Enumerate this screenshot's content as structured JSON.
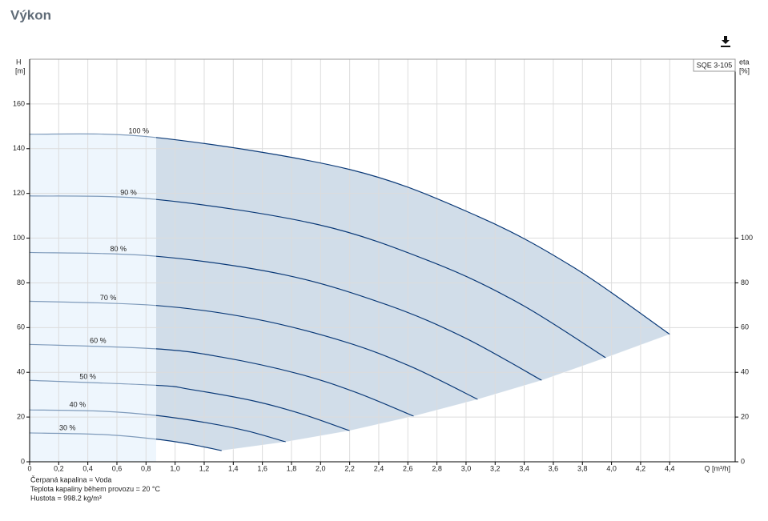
{
  "chart_data": {
    "type": "line",
    "title": "Výkon",
    "curve_label": "SQE 3-105",
    "ylabel": "H",
    "yunit": "[m]",
    "y2label": "eta",
    "y2unit": "[%]",
    "xlabel": "Q [m³/h]",
    "xlim": [
      0,
      4.85
    ],
    "xticks": [
      0,
      {
        "value": 0.2,
        "label": "0,2"
      },
      {
        "value": 0.4,
        "label": "0,4"
      },
      {
        "value": 0.6,
        "label": "0,6"
      },
      {
        "value": 0.8,
        "label": "0,8"
      },
      {
        "value": 1.0,
        "label": "1,0"
      },
      {
        "value": 1.2,
        "label": "1,2"
      },
      {
        "value": 1.4,
        "label": "1,4"
      },
      {
        "value": 1.6,
        "label": "1,6"
      },
      {
        "value": 1.8,
        "label": "1,8"
      },
      {
        "value": 2.0,
        "label": "2,0"
      },
      {
        "value": 2.2,
        "label": "2,2"
      },
      {
        "value": 2.4,
        "label": "2,4"
      },
      {
        "value": 2.6,
        "label": "2,6"
      },
      {
        "value": 2.8,
        "label": "2,8"
      },
      {
        "value": 3.0,
        "label": "3,0"
      },
      {
        "value": 3.2,
        "label": "3,2"
      },
      {
        "value": 3.4,
        "label": "3,4"
      },
      {
        "value": 3.6,
        "label": "3,6"
      },
      {
        "value": 3.8,
        "label": "3,8"
      },
      {
        "value": 4.0,
        "label": "4,0"
      },
      {
        "value": 4.2,
        "label": "4,2"
      },
      {
        "value": 4.4,
        "label": "4,4"
      }
    ],
    "ylim": [
      0,
      180
    ],
    "yticks": [
      0,
      20,
      40,
      60,
      80,
      100,
      120,
      140,
      160
    ],
    "y2lim": [
      0,
      180
    ],
    "y2ticks": [
      0,
      20,
      40,
      60,
      80,
      100
    ],
    "grid": true,
    "operating_range_start": 0.87,
    "color": "#0b3a78",
    "series": [
      {
        "name": "100 %",
        "x": [
          0,
          0.87,
          2.2,
          3.08,
          3.74,
          4.4
        ],
        "values": [
          146.5,
          145.0,
          130.7,
          109.8,
          86.9,
          57.0
        ]
      },
      {
        "name": "90 %",
        "x": [
          0,
          0.87,
          1.98,
          2.77,
          3.37,
          3.96
        ],
        "values": [
          118.9,
          117.3,
          106.1,
          89.2,
          70.7,
          46.5
        ]
      },
      {
        "name": "80 %",
        "x": [
          0,
          0.87,
          1.76,
          2.46,
          2.99,
          3.52
        ],
        "values": [
          93.6,
          91.9,
          83.5,
          70.1,
          55.5,
          36.4
        ]
      },
      {
        "name": "70 %",
        "x": [
          0,
          0.87,
          1.54,
          2.16,
          2.62,
          3.08
        ],
        "values": [
          71.8,
          69.9,
          64.0,
          53.8,
          42.6,
          27.9
        ]
      },
      {
        "name": "60 %",
        "x": [
          0,
          0.87,
          1.32,
          1.85,
          2.24,
          2.64
        ],
        "values": [
          52.5,
          50.5,
          46.8,
          39.3,
          31.1,
          20.4
        ]
      },
      {
        "name": "50 %",
        "x": [
          0,
          0.87,
          1.1,
          1.54,
          1.87,
          2.2
        ],
        "values": [
          36.4,
          34.2,
          32.4,
          27.2,
          21.4,
          13.9
        ]
      },
      {
        "name": "40 %",
        "x": [
          0,
          0.5,
          0.87,
          1.23,
          1.5,
          1.76
        ],
        "values": [
          23.2,
          22.6,
          20.7,
          17.3,
          13.7,
          8.9
        ]
      },
      {
        "name": "30 %",
        "x": [
          0,
          0.5,
          0.87,
          1.1,
          1.32
        ],
        "values": [
          12.9,
          12.2,
          10.1,
          7.9,
          5.0
        ]
      }
    ],
    "notes": [
      "Čerpaná kapalina = Voda",
      "Teplota kapaliny během provozu = 20 °C",
      "Hustota = 998.2 kg/m³"
    ]
  }
}
